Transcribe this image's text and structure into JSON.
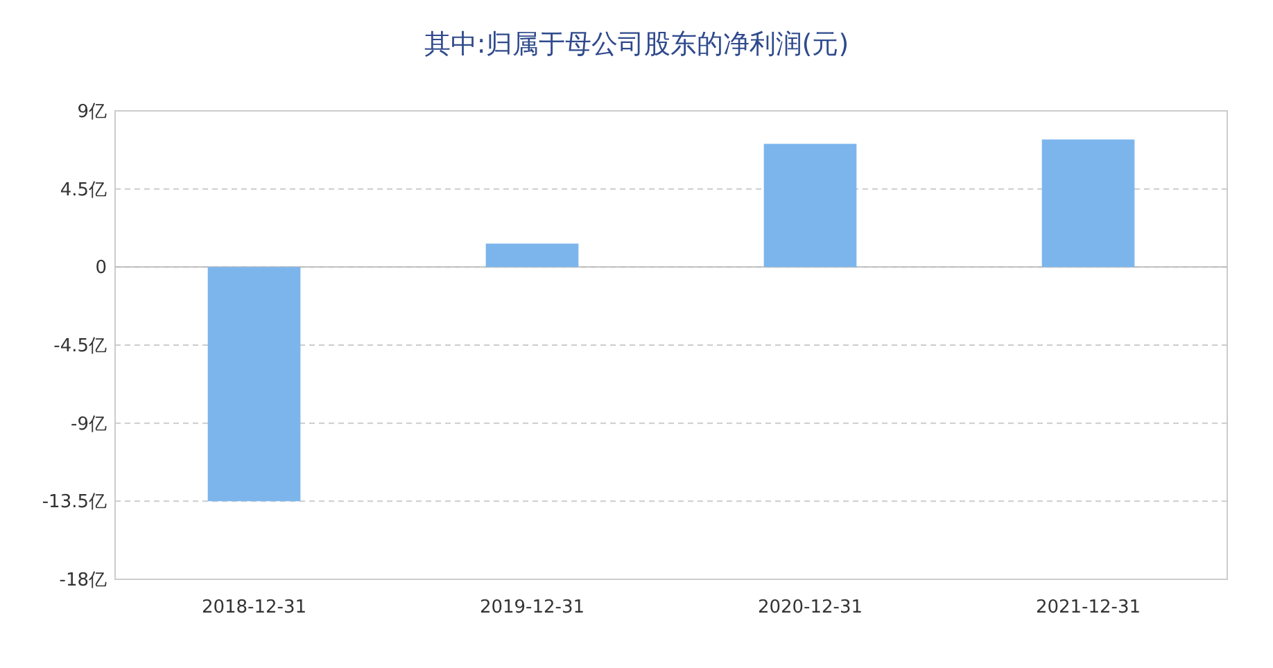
{
  "chart_data": {
    "type": "bar",
    "title": "其中:归属于母公司股东的净利润(元)",
    "categories": [
      "2018-12-31",
      "2019-12-31",
      "2020-12-31",
      "2021-12-31"
    ],
    "values": [
      -13.5,
      1.35,
      7.1,
      7.35
    ],
    "color": "#7cb5ec",
    "ylim": [
      -18,
      9
    ],
    "yticks": [
      {
        "value": -18,
        "label": "-18亿"
      },
      {
        "value": -13.5,
        "label": "-13.5亿"
      },
      {
        "value": -9,
        "label": "-9亿"
      },
      {
        "value": -4.5,
        "label": "-4.5亿"
      },
      0,
      {
        "value": 4.5,
        "label": "4.5亿"
      },
      {
        "value": 9,
        "label": "9亿"
      }
    ],
    "grid": "y"
  }
}
